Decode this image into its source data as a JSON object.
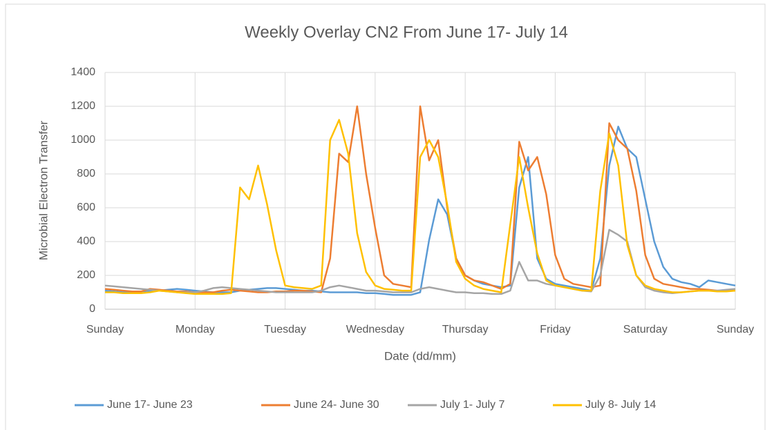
{
  "chart_data": {
    "type": "line",
    "title": "Weekly Overlay CN2 From June 17- July 14",
    "x_label": "Date (dd/mm)",
    "y_label": "Microbial Electron Transfer",
    "x": [
      0,
      0.1,
      0.2,
      0.3,
      0.4,
      0.5,
      0.6,
      0.7,
      0.8,
      0.9,
      1,
      1.1,
      1.2,
      1.3,
      1.4,
      1.5,
      1.6,
      1.7,
      1.8,
      1.9,
      2,
      2.1,
      2.2,
      2.3,
      2.4,
      2.5,
      2.6,
      2.7,
      2.8,
      2.9,
      3,
      3.1,
      3.2,
      3.3,
      3.4,
      3.5,
      3.6,
      3.7,
      3.8,
      3.9,
      4,
      4.1,
      4.2,
      4.3,
      4.4,
      4.5,
      4.6,
      4.7,
      4.8,
      4.9,
      5,
      5.1,
      5.2,
      5.3,
      5.4,
      5.5,
      5.6,
      5.7,
      5.8,
      5.9,
      6,
      6.1,
      6.2,
      6.3,
      6.4,
      6.5,
      6.6,
      6.7,
      6.8,
      6.9,
      7
    ],
    "series": [
      {
        "name": "June 17- June 23",
        "color": "#5b9bd5",
        "values": [
          110,
          105,
          100,
          100,
          105,
          110,
          110,
          115,
          120,
          115,
          110,
          105,
          100,
          100,
          100,
          110,
          115,
          120,
          125,
          125,
          120,
          115,
          110,
          110,
          105,
          100,
          100,
          100,
          100,
          95,
          95,
          90,
          85,
          85,
          85,
          100,
          410,
          650,
          560,
          300,
          200,
          170,
          150,
          140,
          130,
          140,
          720,
          900,
          300,
          180,
          150,
          140,
          130,
          120,
          110,
          300,
          850,
          1080,
          950,
          900,
          650,
          400,
          250,
          180,
          160,
          150,
          130,
          170,
          160,
          150,
          140
        ]
      },
      {
        "name": "June 24- June 30",
        "color": "#ed7d31",
        "values": [
          120,
          115,
          110,
          105,
          105,
          120,
          115,
          110,
          105,
          105,
          100,
          100,
          100,
          110,
          115,
          110,
          105,
          100,
          100,
          105,
          105,
          110,
          110,
          105,
          100,
          300,
          920,
          870,
          1200,
          800,
          480,
          200,
          150,
          140,
          130,
          1200,
          880,
          1000,
          600,
          300,
          200,
          170,
          160,
          140,
          120,
          150,
          990,
          820,
          900,
          680,
          320,
          180,
          150,
          140,
          130,
          140,
          1100,
          1000,
          950,
          700,
          320,
          180,
          150,
          140,
          130,
          120,
          120,
          115,
          110,
          110,
          110
        ]
      },
      {
        "name": "July 1- July 7",
        "color": "#a5a5a5",
        "values": [
          140,
          135,
          130,
          125,
          120,
          115,
          110,
          105,
          100,
          100,
          100,
          110,
          125,
          130,
          125,
          120,
          115,
          110,
          105,
          100,
          100,
          100,
          100,
          100,
          110,
          130,
          140,
          130,
          120,
          110,
          110,
          105,
          100,
          100,
          100,
          120,
          130,
          120,
          110,
          100,
          100,
          95,
          95,
          90,
          90,
          110,
          280,
          170,
          170,
          150,
          140,
          130,
          120,
          110,
          105,
          200,
          470,
          440,
          400,
          200,
          130,
          110,
          100,
          95,
          100,
          105,
          110,
          110,
          110,
          115,
          120
        ]
      },
      {
        "name": "July 8- July 14",
        "color": "#ffc000",
        "values": [
          100,
          100,
          95,
          95,
          95,
          100,
          110,
          105,
          100,
          95,
          90,
          90,
          90,
          90,
          95,
          720,
          650,
          850,
          620,
          350,
          140,
          130,
          125,
          120,
          140,
          1000,
          1120,
          920,
          450,
          220,
          140,
          120,
          115,
          110,
          110,
          900,
          1000,
          900,
          620,
          280,
          180,
          140,
          120,
          110,
          100,
          500,
          900,
          600,
          330,
          170,
          140,
          130,
          120,
          110,
          110,
          700,
          1040,
          850,
          380,
          200,
          140,
          120,
          110,
          100,
          100,
          105,
          110,
          110,
          105,
          105,
          110
        ]
      }
    ],
    "xlim": [
      0,
      7
    ],
    "xticks": [
      {
        "value": 0,
        "label": "Sunday"
      },
      {
        "value": 1,
        "label": "Monday"
      },
      {
        "value": 2,
        "label": "Tuesday"
      },
      {
        "value": 3,
        "label": "Wednesday"
      },
      {
        "value": 4,
        "label": "Thursday"
      },
      {
        "value": 5,
        "label": "Friday"
      },
      {
        "value": 6,
        "label": "Saturday"
      },
      {
        "value": 7,
        "label": "Sunday"
      }
    ],
    "ylim": [
      0,
      1400
    ],
    "yticks": [
      0,
      200,
      400,
      600,
      800,
      1000,
      1200,
      1400
    ],
    "grid": true,
    "legend": "bottom"
  }
}
